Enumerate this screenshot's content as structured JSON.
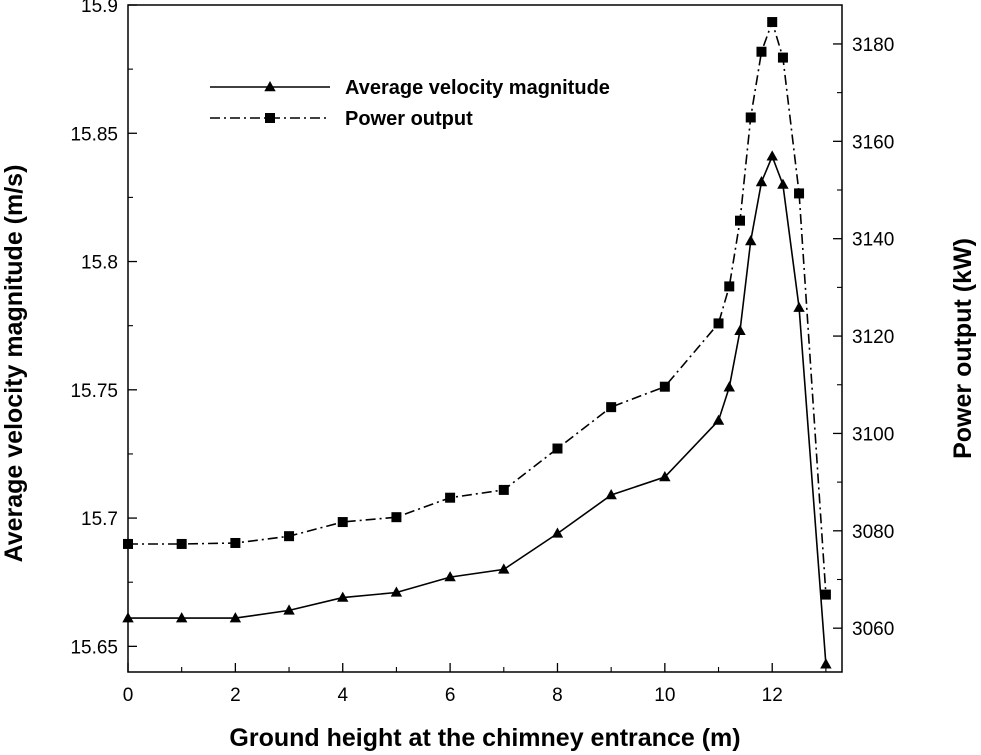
{
  "chart_data": {
    "type": "line",
    "title": "",
    "xlabel": "Ground height at the chimney entrance (m)",
    "ylabel_left": "Average velocity magnitude (m/s)",
    "ylabel_right": "Power output (kW)",
    "xlim": [
      0,
      13.3
    ],
    "ylim_left": [
      15.64,
      15.9
    ],
    "ylim_right": [
      3051,
      3188
    ],
    "x_ticks": [
      "0",
      "2",
      "4",
      "6",
      "8",
      "10",
      "12"
    ],
    "y_left_ticks": [
      "15.65",
      "15.7",
      "15.75",
      "15.8",
      "15.85",
      "15.9"
    ],
    "y_right_ticks": [
      "3060",
      "3080",
      "3100",
      "3120",
      "3140",
      "3160",
      "3180"
    ],
    "grid": false,
    "legend_position": "top-left",
    "series": [
      {
        "name": "Average velocity magnitude",
        "axis": "left",
        "marker": "triangle",
        "line_style": "solid",
        "x": [
          0,
          1,
          2,
          3,
          4,
          5,
          6,
          7,
          8,
          9,
          10,
          11,
          11.2,
          11.4,
          11.6,
          11.8,
          12,
          12.2,
          12.5,
          13
        ],
        "y": [
          15.661,
          15.661,
          15.661,
          15.664,
          15.669,
          15.671,
          15.677,
          15.68,
          15.694,
          15.709,
          15.716,
          15.738,
          15.751,
          15.773,
          15.808,
          15.831,
          15.841,
          15.83,
          15.782,
          15.643
        ]
      },
      {
        "name": "Power output",
        "axis": "right",
        "marker": "square",
        "line_style": "dash-dot",
        "x": [
          0,
          1,
          2,
          3,
          4,
          5,
          6,
          7,
          8,
          9,
          10,
          11,
          11.2,
          11.4,
          11.6,
          11.8,
          12,
          12.2,
          12.5,
          13
        ],
        "y": [
          3077.3,
          3077.3,
          3077.5,
          3078.9,
          3081.8,
          3082.8,
          3086.8,
          3088.4,
          3096.9,
          3105.4,
          3109.6,
          3122.6,
          3130.2,
          3143.7,
          3164.9,
          3178.4,
          3184.5,
          3177.2,
          3149.3,
          3066.9
        ]
      }
    ]
  }
}
